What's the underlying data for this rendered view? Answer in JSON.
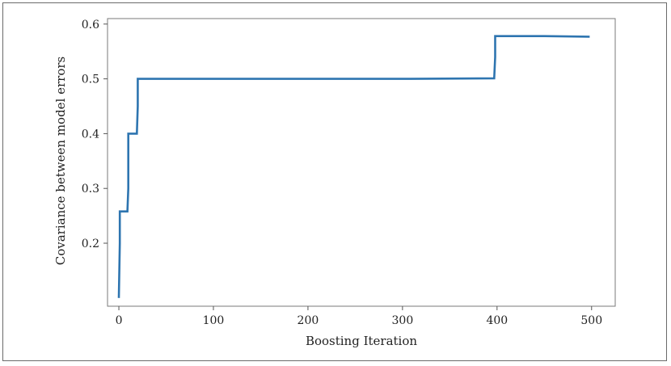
{
  "chart_data": {
    "type": "line",
    "title": "",
    "xlabel": "Boosting Iteration",
    "ylabel": "Covariance between model errors",
    "xlim": [
      -12,
      525
    ],
    "ylim": [
      0.085,
      0.61
    ],
    "xticks": [
      0,
      100,
      200,
      300,
      400,
      500
    ],
    "yticks": [
      0.2,
      0.3,
      0.4,
      0.5,
      0.6
    ],
    "xtick_labels": [
      "0",
      "100",
      "200",
      "300",
      "400",
      "500"
    ],
    "ytick_labels": [
      "0.2",
      "0.3",
      "0.4",
      "0.5",
      "0.6"
    ],
    "grid": false,
    "color": "#2e75b0",
    "series": [
      {
        "x": [
          0,
          1,
          1,
          9,
          10,
          10,
          19,
          20,
          20,
          100,
          200,
          300,
          397,
          398,
          398,
          450,
          498
        ],
        "y": [
          0.1,
          0.2,
          0.258,
          0.258,
          0.3,
          0.4,
          0.4,
          0.45,
          0.5,
          0.5,
          0.5,
          0.5,
          0.501,
          0.54,
          0.578,
          0.578,
          0.577
        ]
      }
    ]
  }
}
